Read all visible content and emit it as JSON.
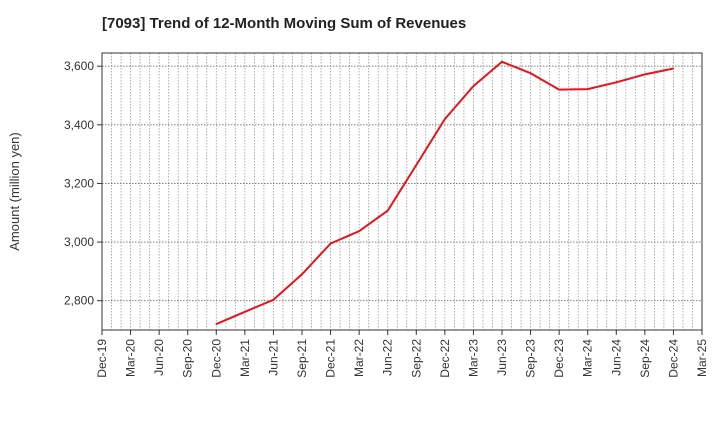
{
  "chart_data": {
    "type": "line",
    "title": "[7093]  Trend of 12-Month Moving Sum of Revenues",
    "xlabel": "",
    "ylabel": "Amount (million yen)",
    "ylim": [
      2700,
      3645
    ],
    "y_ticks": [
      2800,
      3000,
      3200,
      3400,
      3600
    ],
    "y_tick_labels": [
      "2,800",
      "3,000",
      "3,200",
      "3,400",
      "3,600"
    ],
    "x_ticks": [
      "Dec-19",
      "Mar-20",
      "Jun-20",
      "Sep-20",
      "Dec-20",
      "Mar-21",
      "Jun-21",
      "Sep-21",
      "Dec-21",
      "Mar-22",
      "Jun-22",
      "Sep-22",
      "Dec-22",
      "Mar-23",
      "Jun-23",
      "Sep-23",
      "Dec-23",
      "Mar-24",
      "Jun-24",
      "Sep-24",
      "Dec-24",
      "Mar-25"
    ],
    "grid": true,
    "line_color": "#e8141b",
    "series": [
      {
        "x": [
          "Dec-20",
          "Mar-21",
          "Jun-21",
          "Sep-21",
          "Dec-21",
          "Mar-22",
          "Jun-22",
          "Sep-22",
          "Dec-22",
          "Mar-23",
          "Jun-23",
          "Sep-23",
          "Dec-23",
          "Mar-24",
          "Jun-24",
          "Sep-24",
          "Dec-24"
        ],
        "values": [
          2720,
          2762,
          2803,
          2890,
          2995,
          3037,
          3107,
          3263,
          3420,
          3532,
          3615,
          3576,
          3520,
          3522,
          3545,
          3572,
          3592
        ]
      }
    ]
  }
}
